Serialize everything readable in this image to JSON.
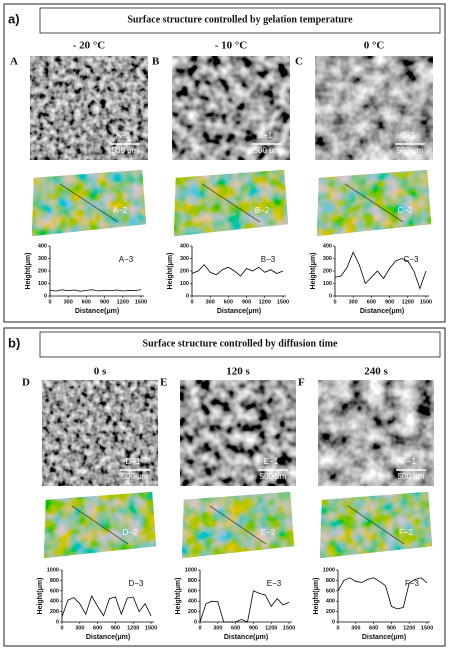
{
  "panels": [
    {
      "label": "a)",
      "title": "Surface structure controlled by gelation temperature",
      "columns": [
        {
          "letter": "A",
          "heading": "- 20 °C",
          "sem_label": "A−1",
          "scale_bar": "500 μm",
          "profile_label": "A−2",
          "chart": {
            "type": "line",
            "label": "A−3",
            "y_label": "Height(μm)",
            "x_label": "Distance(μm)",
            "x": [
              0,
              100,
              200,
              300,
              400,
              500,
              600,
              700,
              800,
              900,
              1000,
              1100,
              1200,
              1300,
              1400,
              1500
            ],
            "values": [
              45,
              40,
              50,
              42,
              48,
              38,
              45,
              50,
              40,
              46,
              42,
              48,
              40,
              45,
              44,
              50
            ],
            "xlim": [
              0,
              1550
            ],
            "ylim": [
              0,
              400
            ],
            "xticks": [
              0,
              300,
              600,
              900,
              1200,
              1500
            ],
            "yticks": [
              0,
              100,
              200,
              300,
              400
            ]
          }
        },
        {
          "letter": "B",
          "heading": "- 10 °C",
          "sem_label": "B−1",
          "scale_bar": "500 μm",
          "profile_label": "B−2",
          "chart": {
            "type": "line",
            "label": "B−3",
            "y_label": "Height(μm)",
            "x_label": "Distance(μm)",
            "x": [
              0,
              100,
              200,
              300,
              400,
              500,
              600,
              700,
              800,
              900,
              1000,
              1100,
              1200,
              1300,
              1400,
              1500
            ],
            "values": [
              180,
              200,
              250,
              190,
              170,
              210,
              230,
              200,
              160,
              220,
              200,
              230,
              190,
              210,
              180,
              200
            ],
            "xlim": [
              0,
              1550
            ],
            "ylim": [
              0,
              400
            ],
            "xticks": [
              0,
              300,
              600,
              900,
              1200,
              1500
            ],
            "yticks": [
              0,
              100,
              200,
              300,
              400
            ]
          }
        },
        {
          "letter": "C",
          "heading": "0 °C",
          "sem_label": "C−1",
          "scale_bar": "500 μm",
          "profile_label": "C−2",
          "chart": {
            "type": "line",
            "label": "C−3",
            "y_label": "Height(μm)",
            "x_label": "Distance(μm)",
            "x": [
              0,
              100,
              200,
              300,
              400,
              500,
              600,
              700,
              800,
              900,
              1000,
              1100,
              1200,
              1300,
              1400,
              1500
            ],
            "values": [
              150,
              160,
              230,
              350,
              250,
              100,
              150,
              200,
              140,
              220,
              280,
              300,
              280,
              200,
              60,
              200
            ],
            "xlim": [
              0,
              1550
            ],
            "ylim": [
              0,
              400
            ],
            "xticks": [
              0,
              300,
              600,
              900,
              1200,
              1500
            ],
            "yticks": [
              0,
              100,
              200,
              300,
              400
            ]
          }
        }
      ]
    },
    {
      "label": "b)",
      "title": "Surface structure controlled by diffusion time",
      "columns": [
        {
          "letter": "D",
          "heading": "0 s",
          "sem_label": "D−1",
          "scale_bar": "500 μm",
          "profile_label": "D−2",
          "chart": {
            "type": "line",
            "label": "D−3",
            "y_label": "Height(μm)",
            "x_label": "Distance(μm)",
            "x": [
              0,
              100,
              200,
              300,
              400,
              500,
              600,
              700,
              800,
              900,
              1000,
              1100,
              1200,
              1300,
              1400,
              1500
            ],
            "values": [
              100,
              420,
              470,
              350,
              150,
              500,
              300,
              120,
              450,
              480,
              150,
              460,
              480,
              200,
              350,
              120
            ],
            "xlim": [
              0,
              1550
            ],
            "ylim": [
              0,
              1000
            ],
            "xticks": [
              0,
              300,
              600,
              900,
              1200,
              1500
            ],
            "yticks": [
              0,
              200,
              400,
              600,
              800,
              1000
            ]
          }
        },
        {
          "letter": "E",
          "heading": "120 s",
          "sem_label": "E−1",
          "scale_bar": "500 μm",
          "profile_label": "E−2",
          "chart": {
            "type": "line",
            "label": "E−3",
            "y_label": "Height(μm)",
            "x_label": "Distance(μm)",
            "x": [
              0,
              100,
              200,
              300,
              400,
              500,
              600,
              700,
              800,
              900,
              1000,
              1100,
              1200,
              1300,
              1400,
              1500
            ],
            "values": [
              0,
              350,
              400,
              390,
              0,
              0,
              0,
              50,
              0,
              600,
              550,
              520,
              300,
              450,
              330,
              380
            ],
            "xlim": [
              0,
              1550
            ],
            "ylim": [
              0,
              1000
            ],
            "xticks": [
              0,
              300,
              600,
              900,
              1200,
              1500
            ],
            "yticks": [
              0,
              200,
              400,
              600,
              800,
              1000
            ]
          }
        },
        {
          "letter": "F",
          "heading": "240 s",
          "sem_label": "F−1",
          "scale_bar": "500 μm",
          "profile_label": "F−2",
          "chart": {
            "type": "line",
            "label": "F−3",
            "y_label": "Height(μm)",
            "x_label": "Distance(μm)",
            "x": [
              0,
              100,
              200,
              300,
              400,
              500,
              600,
              700,
              800,
              900,
              1000,
              1100,
              1200,
              1300,
              1400,
              1500
            ],
            "values": [
              600,
              800,
              850,
              780,
              760,
              820,
              850,
              780,
              700,
              300,
              250,
              280,
              750,
              820,
              850,
              750
            ],
            "xlim": [
              0,
              1550
            ],
            "ylim": [
              0,
              1000
            ],
            "xticks": [
              0,
              300,
              600,
              900,
              1200,
              1500
            ],
            "yticks": [
              0,
              200,
              400,
              600,
              800,
              1000
            ]
          }
        }
      ]
    }
  ]
}
